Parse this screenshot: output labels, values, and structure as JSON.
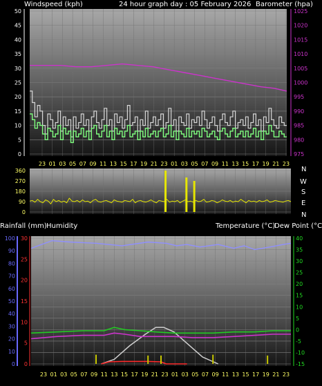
{
  "header": {
    "left": "Windspeed (kph)",
    "center": "24 hour graph day : 05 February 2026",
    "right": "Barometer (hpa)"
  },
  "lower_header": {
    "left1": "Rainfall (mm)",
    "left2": "Humidity",
    "right1": "Temperature (°C)",
    "right2": "Dew Point (°C)"
  },
  "compass": [
    "N",
    "W",
    "S",
    "E",
    "N"
  ],
  "colors": {
    "wind": "#7fff7f",
    "gust": "#d8d8d8",
    "baro": "#cc33cc",
    "direction": "#e6e600",
    "humidity": "#8f8fff",
    "temperature": "#22cc22",
    "dewpoint": "#cc33cc",
    "solar": "#d0d0d0",
    "rain_rate": "#ff2a2a",
    "rain_ticks": "#c8c800",
    "rain_axis": "#ff3333",
    "hum_axis": "#6a6aff",
    "temp_axis": "#22dd22",
    "time_labels": "#ffff66"
  },
  "chart_data": [
    {
      "type": "line",
      "name": "wind",
      "time_labels": [
        "23",
        "01",
        "03",
        "05",
        "07",
        "09",
        "11",
        "13",
        "15",
        "17",
        "19",
        "21",
        "23",
        "01",
        "03",
        "05",
        "07",
        "09",
        "11",
        "13",
        "15",
        "17",
        "19",
        "21",
        "23"
      ],
      "y_left_ticks": [
        "0",
        "5",
        "10",
        "15",
        "20",
        "25",
        "30",
        "35",
        "40",
        "45",
        "50"
      ],
      "y_left_range": [
        0,
        50
      ],
      "y_right_ticks": [
        "975",
        "980",
        "985",
        "990",
        "995",
        "1000",
        "1005",
        "1010",
        "1015",
        "1020",
        "1025"
      ],
      "y_right_range": [
        975,
        1025
      ],
      "series": [
        {
          "key": "gust",
          "values": [
            22,
            18,
            13,
            17,
            15,
            10,
            7,
            14,
            12,
            9,
            11,
            15,
            8,
            13,
            10,
            12,
            6,
            13,
            9,
            11,
            14,
            10,
            12,
            8,
            13,
            15,
            11,
            9,
            12,
            16,
            10,
            12,
            8,
            14,
            11,
            13,
            9,
            12,
            17,
            10,
            11,
            13,
            8,
            12,
            10,
            15,
            9,
            11,
            13,
            10,
            12,
            14,
            9,
            11,
            16,
            10,
            12,
            8,
            13,
            11,
            10,
            14,
            9,
            12,
            11,
            13,
            10,
            15,
            12,
            9,
            11,
            13,
            10,
            8,
            12,
            14,
            11,
            10,
            13,
            15,
            9,
            11,
            12,
            10,
            13,
            9,
            11,
            14,
            10,
            12,
            8,
            13,
            11,
            16,
            12,
            10,
            9,
            13,
            11,
            10
          ]
        },
        {
          "key": "wind",
          "values": [
            14,
            12,
            9,
            11,
            10,
            7,
            5,
            9,
            8,
            6,
            7,
            10,
            5,
            9,
            7,
            8,
            4,
            8,
            6,
            7,
            9,
            6,
            8,
            5,
            9,
            10,
            7,
            6,
            8,
            10,
            6,
            8,
            5,
            9,
            7,
            8,
            6,
            8,
            10,
            6,
            7,
            8,
            5,
            8,
            6,
            9,
            6,
            7,
            8,
            6,
            8,
            9,
            6,
            7,
            10,
            6,
            8,
            5,
            8,
            7,
            6,
            9,
            6,
            8,
            7,
            8,
            6,
            9,
            8,
            6,
            7,
            8,
            6,
            5,
            8,
            9,
            7,
            6,
            8,
            9,
            6,
            7,
            8,
            6,
            8,
            6,
            7,
            9,
            6,
            8,
            5,
            8,
            7,
            10,
            8,
            6,
            6,
            8,
            7,
            6
          ]
        },
        {
          "key": "barometer",
          "x": [
            0,
            0.06,
            0.12,
            0.18,
            0.24,
            0.3,
            0.36,
            0.42,
            0.48,
            0.54,
            0.6,
            0.66,
            0.72,
            0.78,
            0.84,
            0.9,
            0.95,
            1.0
          ],
          "values": [
            1006,
            1006,
            1006,
            1005.5,
            1005.5,
            1006,
            1006.5,
            1006,
            1005.5,
            1004.5,
            1003.5,
            1002.5,
            1001.5,
            1000.5,
            999.5,
            998.5,
            998,
            997
          ]
        }
      ]
    },
    {
      "type": "line",
      "name": "direction",
      "y_ticks": [
        "0",
        "90",
        "180",
        "270",
        "360"
      ],
      "y_range": [
        0,
        360
      ],
      "series": [
        {
          "key": "direction",
          "values": [
            95,
            100,
            85,
            110,
            90,
            80,
            105,
            95,
            70,
            110,
            90,
            100,
            85,
            95,
            80,
            120,
            95,
            90,
            100,
            85,
            105,
            90,
            95,
            80,
            100,
            110,
            90,
            85,
            95,
            100,
            90,
            80,
            105,
            95,
            90,
            85,
            100,
            95,
            90,
            110,
            80,
            95,
            100,
            90,
            85,
            95,
            105,
            90,
            80,
            100,
            95,
            90,
            110,
            85,
            95,
            90,
            100,
            80,
            95,
            105,
            90,
            95,
            85,
            100,
            90,
            95,
            110,
            85,
            90,
            100,
            95,
            80,
            90,
            105,
            95,
            90,
            100,
            85,
            95,
            90,
            110,
            95,
            80,
            100,
            90,
            95,
            85,
            100,
            90,
            95,
            105,
            85,
            90,
            100,
            95,
            90,
            85,
            95,
            100,
            90
          ]
        },
        {
          "key": "spikes",
          "x": [
            0.52,
            0.6,
            0.63
          ],
          "values": [
            360,
            300,
            270
          ]
        }
      ]
    },
    {
      "type": "line",
      "name": "rain-temp",
      "rain_ticks": [
        "0",
        "5",
        "10",
        "15",
        "20",
        "25",
        "30"
      ],
      "rain_range": [
        0,
        30
      ],
      "humidity_ticks": [
        "0",
        "10",
        "20",
        "30",
        "40",
        "50",
        "60",
        "70",
        "80",
        "90",
        "100"
      ],
      "humidity_range": [
        0,
        100
      ],
      "temp_ticks": [
        "-15",
        "-10",
        "-5",
        "0",
        "5",
        "10",
        "15",
        "20",
        "25",
        "30",
        "35",
        "40"
      ],
      "temp_range": [
        -15,
        40
      ],
      "series": [
        {
          "key": "humidity",
          "x": [
            0,
            0.04,
            0.08,
            0.15,
            0.25,
            0.35,
            0.45,
            0.52,
            0.56,
            0.6,
            0.65,
            0.72,
            0.78,
            0.82,
            0.86,
            0.92,
            0.97,
            1.0
          ],
          "values": [
            92,
            95,
            98,
            97,
            96,
            94,
            97,
            96,
            94,
            95,
            93,
            95,
            92,
            94,
            91,
            93,
            95,
            96
          ]
        },
        {
          "key": "temperature",
          "x": [
            0,
            0.1,
            0.2,
            0.28,
            0.32,
            0.36,
            0.42,
            0.48,
            0.55,
            0.62,
            0.7,
            0.78,
            0.86,
            0.93,
            1.0
          ],
          "values": [
            -1.5,
            -1,
            -0.5,
            -0.5,
            1,
            0,
            -0.5,
            -1,
            -1.5,
            -1.5,
            -1.5,
            -1,
            -1,
            -0.5,
            -0.5
          ]
        },
        {
          "key": "dewpoint",
          "x": [
            0,
            0.1,
            0.2,
            0.28,
            0.32,
            0.36,
            0.42,
            0.48,
            0.55,
            0.62,
            0.7,
            0.78,
            0.86,
            0.93,
            1.0
          ],
          "values": [
            -4,
            -3,
            -2.5,
            -2.5,
            -1.5,
            -2,
            -3,
            -3,
            -3,
            -3.5,
            -3.5,
            -3,
            -2.5,
            -2,
            -2
          ]
        },
        {
          "key": "solar",
          "x": [
            0.27,
            0.32,
            0.38,
            0.44,
            0.48,
            0.51,
            0.55,
            0.6,
            0.66,
            0.72
          ],
          "values": [
            -15,
            -13,
            -7,
            -2,
            1,
            1,
            -1,
            -6,
            -12,
            -15
          ]
        },
        {
          "key": "rain_rate",
          "x": [
            0.27,
            0.3,
            0.35,
            0.45,
            0.5,
            0.52,
            0.6
          ],
          "values": [
            0,
            0.5,
            0.6,
            0.6,
            0.5,
            0,
            0
          ]
        },
        {
          "key": "rain_ticks",
          "x": [
            0.25,
            0.45,
            0.5,
            0.7,
            0.91
          ],
          "values": [
            2.2,
            2,
            2,
            2.2,
            2
          ]
        }
      ]
    }
  ]
}
